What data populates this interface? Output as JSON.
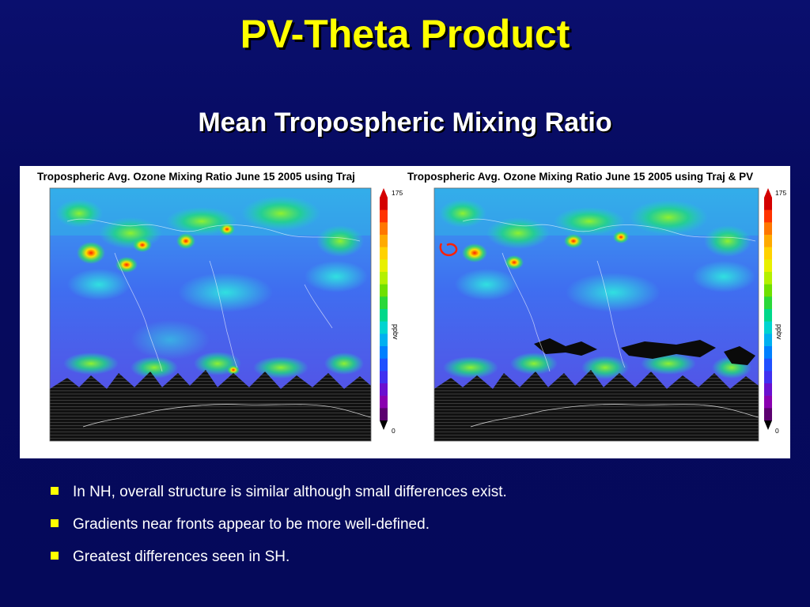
{
  "slide": {
    "title": "PV-Theta Product",
    "subtitle": "Mean Tropospheric Mixing Ratio"
  },
  "figure": {
    "panels": [
      {
        "title": "Tropospheric Avg. Ozone Mixing Ratio June 15  2005 using Traj",
        "colorbar": {
          "max_label": "175",
          "min_label": "0",
          "unit_label": "ppbv"
        }
      },
      {
        "title": "Tropospheric Avg. Ozone Mixing Ratio June 15  2005 using Traj & PV",
        "colorbar": {
          "max_label": "175",
          "min_label": "0",
          "unit_label": "ppbv"
        }
      }
    ],
    "colorbar_colors": [
      "#d40000",
      "#ff3300",
      "#ff7700",
      "#ffaa00",
      "#ffd200",
      "#e8f000",
      "#b4f000",
      "#6fe000",
      "#2ad83a",
      "#00d88a",
      "#00d4d0",
      "#00b0f0",
      "#0080ff",
      "#2050ff",
      "#4030f0",
      "#6a10d0",
      "#8a00b0",
      "#5c0070"
    ]
  },
  "bullets": [
    "In NH, overall structure is similar although small differences exist.",
    "Gradients near fronts appear to be more well-defined.",
    "Greatest differences seen in SH."
  ]
}
